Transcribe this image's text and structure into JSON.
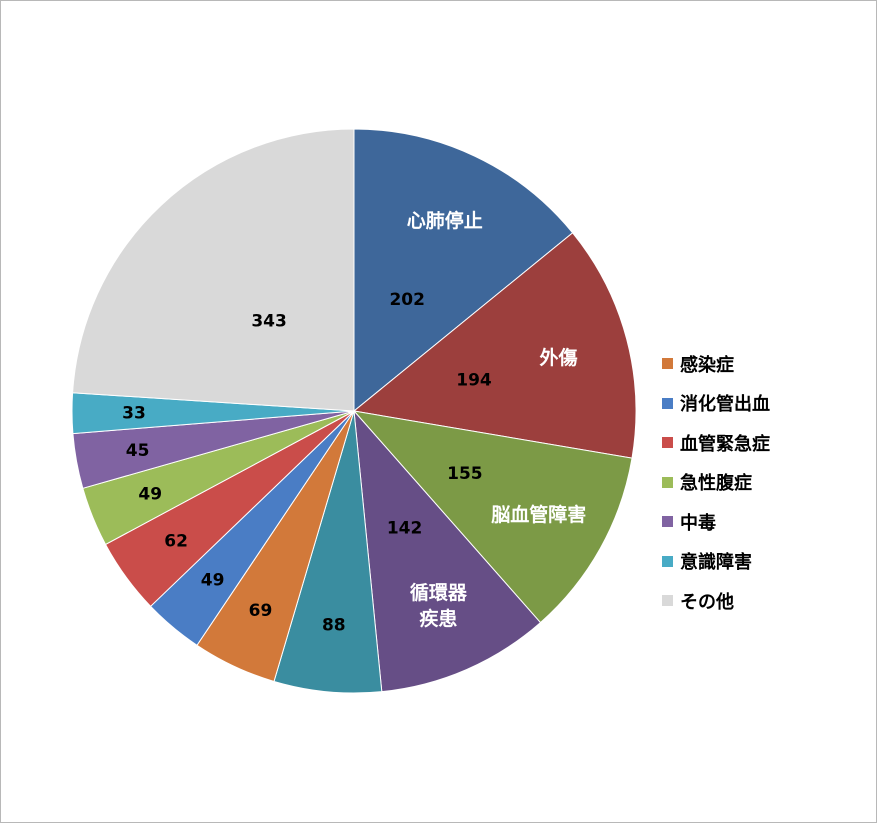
{
  "chart_data": {
    "type": "pie",
    "slices": [
      {
        "label": "心肺停止",
        "value": 202,
        "color": "#3E679A",
        "inner_label": "心肺停止"
      },
      {
        "label": "外傷",
        "value": 194,
        "color": "#9C3F3D",
        "inner_label": "外傷"
      },
      {
        "label": "脳血管障害",
        "value": 155,
        "color": "#7C9A46",
        "inner_label": "脳血管障害"
      },
      {
        "label": "循環器疾患",
        "value": 142,
        "color": "#664E86",
        "inner_label": "循環器\n疾患"
      },
      {
        "label": "",
        "value": 88,
        "color": "#3A8DA0",
        "inner_label": ""
      },
      {
        "label": "感染症",
        "value": 69,
        "color": "#D2793A",
        "inner_label": ""
      },
      {
        "label": "消化管出血",
        "value": 49,
        "color": "#4A7DC5",
        "inner_label": ""
      },
      {
        "label": "血管緊急症",
        "value": 62,
        "color": "#CA4D4A",
        "inner_label": ""
      },
      {
        "label": "急性腹症",
        "value": 49,
        "color": "#9CBC59",
        "inner_label": ""
      },
      {
        "label": "中毒",
        "value": 45,
        "color": "#8063A2",
        "inner_label": ""
      },
      {
        "label": "意識障害",
        "value": 33,
        "color": "#48ABC5",
        "inner_label": ""
      },
      {
        "label": "その他",
        "value": 343,
        "color": "#D9D9D9",
        "inner_label": ""
      }
    ],
    "legend": {
      "position": "right",
      "items": [
        {
          "label": "感染症",
          "color": "#D2793A"
        },
        {
          "label": "消化管出血",
          "color": "#4A7DC5"
        },
        {
          "label": "血管緊急症",
          "color": "#CA4D4A"
        },
        {
          "label": "急性腹症",
          "color": "#9CBC59"
        },
        {
          "label": "中毒",
          "color": "#8063A2"
        },
        {
          "label": "意識障害",
          "color": "#48ABC5"
        },
        {
          "label": "その他",
          "color": "#D9D9D9"
        }
      ]
    }
  }
}
